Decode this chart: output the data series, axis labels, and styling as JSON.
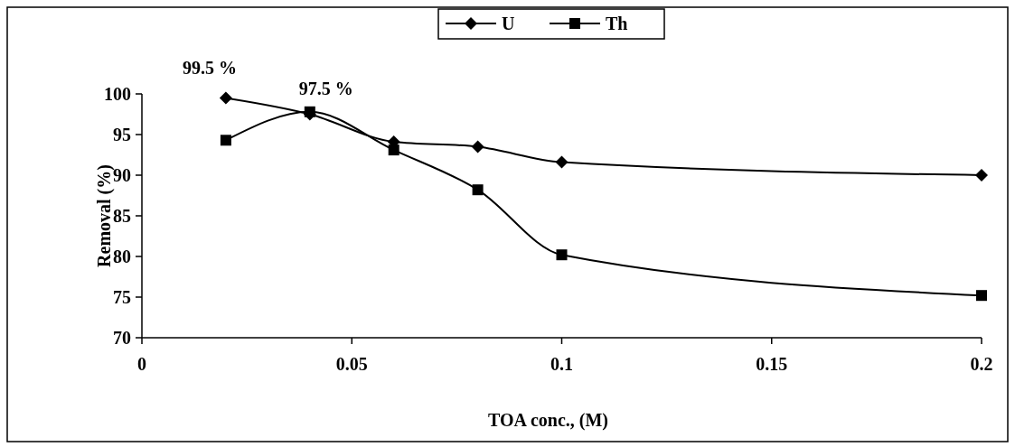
{
  "chart_data": {
    "type": "line",
    "xlabel": "TOA conc., (M)",
    "ylabel": "Removal (%)",
    "x": [
      0.02,
      0.04,
      0.06,
      0.08,
      0.1,
      0.2
    ],
    "series": [
      {
        "name": "U",
        "color": "#000000",
        "marker": "diamond",
        "values": [
          99.5,
          97.5,
          94.1,
          93.5,
          91.6,
          90
        ]
      },
      {
        "name": "Th",
        "color": "#000000",
        "marker": "square",
        "values": [
          94.3,
          97.8,
          93.1,
          88.2,
          80.2,
          75.2
        ]
      }
    ],
    "xlim": [
      0,
      0.2
    ],
    "xticks": [
      0,
      0.05,
      0.1,
      0.15,
      0.2
    ],
    "ylim": [
      70,
      100
    ],
    "yticks": [
      70,
      75,
      80,
      85,
      90,
      95,
      100
    ],
    "annotations": [
      {
        "text": "99.5 %",
        "x": 0.02,
        "y": 99.5
      },
      {
        "text": "97.5 %",
        "x": 0.04,
        "y": 97.5
      }
    ],
    "legend": "top",
    "grid": false,
    "line_style": "solid"
  }
}
